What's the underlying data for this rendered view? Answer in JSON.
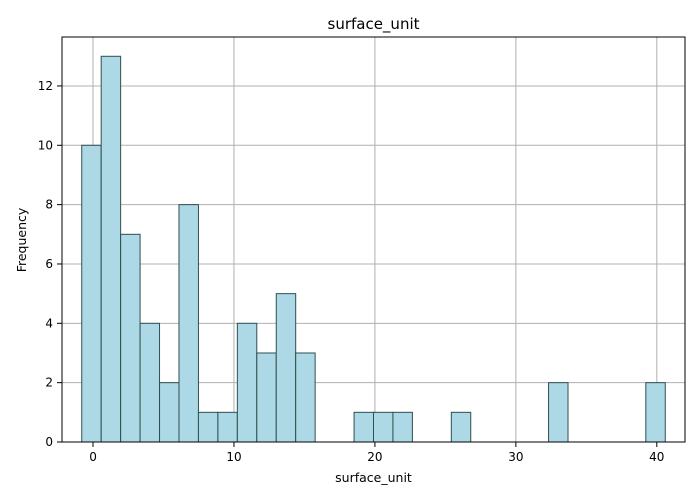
{
  "chart_data": {
    "type": "bar",
    "title": "surface_unit",
    "xlabel": "surface_unit",
    "ylabel": "Frequency",
    "xlim": [
      -2.2,
      42.0
    ],
    "ylim": [
      0,
      13.65
    ],
    "grid": true,
    "bar_color": "#add8e6",
    "edge_color": "#2f4f4f",
    "bin_width": 1.38,
    "bins": [
      {
        "x0": -0.8,
        "count": 10
      },
      {
        "x0": 0.58,
        "count": 13
      },
      {
        "x0": 1.96,
        "count": 7
      },
      {
        "x0": 3.34,
        "count": 4
      },
      {
        "x0": 4.72,
        "count": 2
      },
      {
        "x0": 6.1,
        "count": 8
      },
      {
        "x0": 7.48,
        "count": 1
      },
      {
        "x0": 8.86,
        "count": 1
      },
      {
        "x0": 10.24,
        "count": 4
      },
      {
        "x0": 11.62,
        "count": 3
      },
      {
        "x0": 13.0,
        "count": 5
      },
      {
        "x0": 14.38,
        "count": 3
      },
      {
        "x0": 18.52,
        "count": 1
      },
      {
        "x0": 19.9,
        "count": 1
      },
      {
        "x0": 21.28,
        "count": 1
      },
      {
        "x0": 25.42,
        "count": 1
      },
      {
        "x0": 32.32,
        "count": 2
      },
      {
        "x0": 39.22,
        "count": 2
      }
    ],
    "xticks": [
      0,
      10,
      20,
      30,
      40
    ],
    "yticks": [
      0,
      2,
      4,
      6,
      8,
      10,
      12
    ]
  }
}
